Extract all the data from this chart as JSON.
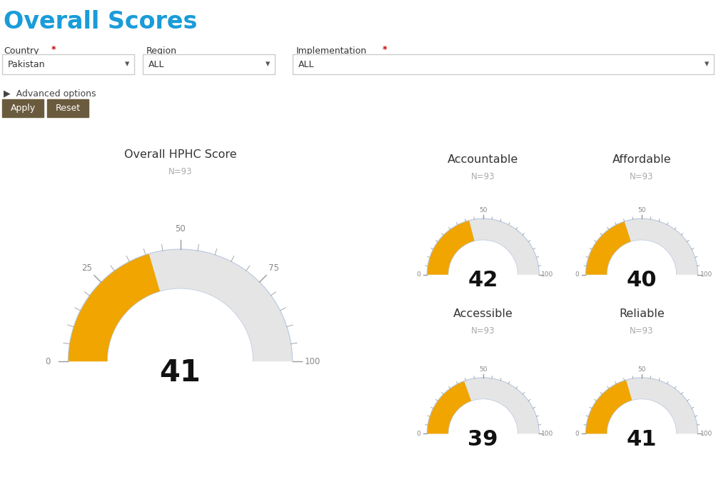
{
  "title": "Overall Scores",
  "title_color": "#1a9cd8",
  "bg_color": "#ffffff",
  "ui": {
    "country_star_color": "#cc0000",
    "impl_star_color": "#cc0000",
    "dropdown_border": "#cccccc",
    "dropdown_arrow": "#555555",
    "btn_color": "#6b5b3e",
    "btn_text": "#ffffff",
    "adv_color": "#333333"
  },
  "gauges": [
    {
      "title": "Overall HPHC Score",
      "n_label": "N=93",
      "value": 41,
      "min": 0,
      "max": 100,
      "major_ticks": [
        0,
        25,
        50,
        75,
        100
      ],
      "large": true
    },
    {
      "title": "Accountable",
      "n_label": "N=93",
      "value": 42,
      "min": 0,
      "max": 100,
      "major_ticks": [
        0,
        50,
        100
      ],
      "large": false
    },
    {
      "title": "Affordable",
      "n_label": "N=93",
      "value": 40,
      "min": 0,
      "max": 100,
      "major_ticks": [
        0,
        50,
        100
      ],
      "large": false
    },
    {
      "title": "Accessible",
      "n_label": "N=93",
      "value": 39,
      "min": 0,
      "max": 100,
      "major_ticks": [
        0,
        50,
        100
      ],
      "large": false
    },
    {
      "title": "Reliable",
      "n_label": "N=93",
      "value": 41,
      "min": 0,
      "max": 100,
      "major_ticks": [
        0,
        50,
        100
      ],
      "large": false
    }
  ],
  "gauge_filled": "#f0a500",
  "gauge_empty": "#e5e5e5",
  "gauge_border": "#b8c8e0",
  "tick_color": "#999999",
  "tick_label_color": "#888888",
  "value_color": "#111111",
  "title_text_color": "#333333",
  "n_label_color": "#aaaaaa"
}
